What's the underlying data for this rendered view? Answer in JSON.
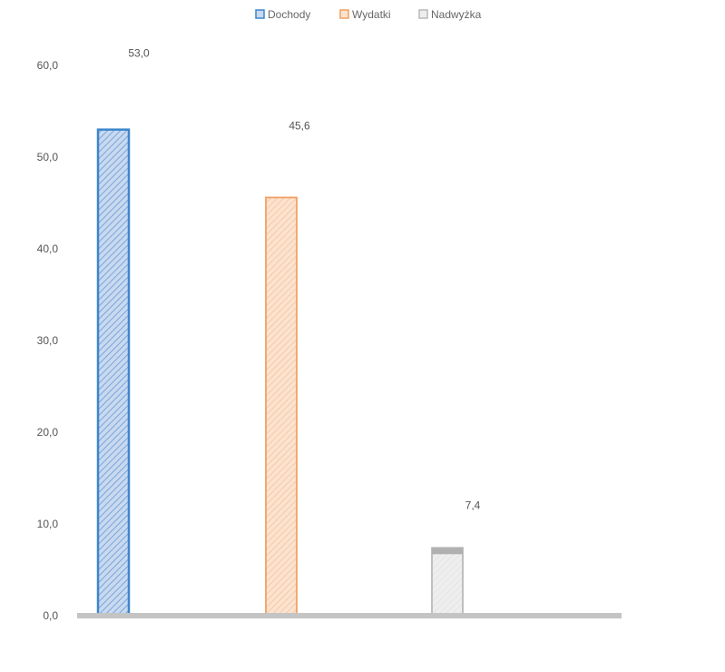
{
  "chart_data": {
    "type": "bar",
    "categories": [
      "Dochody",
      "Wydatki",
      "Nadwyżka"
    ],
    "values": [
      53.0,
      45.6,
      7.4
    ],
    "value_labels": [
      "53,0",
      "45,6",
      "7,4"
    ],
    "title": "",
    "xlabel": "",
    "ylabel": "",
    "ylim": [
      0,
      60
    ],
    "yticks": [
      "0,0",
      "10,0",
      "20,0",
      "30,0",
      "40,0",
      "50,0",
      "60,0"
    ],
    "grid": false,
    "legend": {
      "placement": "top-center",
      "entries": [
        "Dochody",
        "Wydatki",
        "Nadwyżka"
      ]
    },
    "colors": {
      "Dochody": {
        "fill": "#c9d9ef",
        "stroke": "#3d86cc",
        "hatch": "#7aa6dc"
      },
      "Wydatki": {
        "fill": "#fbe3cf",
        "stroke": "#f0a064",
        "hatch": "#f5c09a"
      },
      "Nadwyżka": {
        "fill": "#eeeeee",
        "stroke": "#b9b9b9",
        "hatch": "#dddddd"
      },
      "axis": "#c4c4c4"
    }
  }
}
